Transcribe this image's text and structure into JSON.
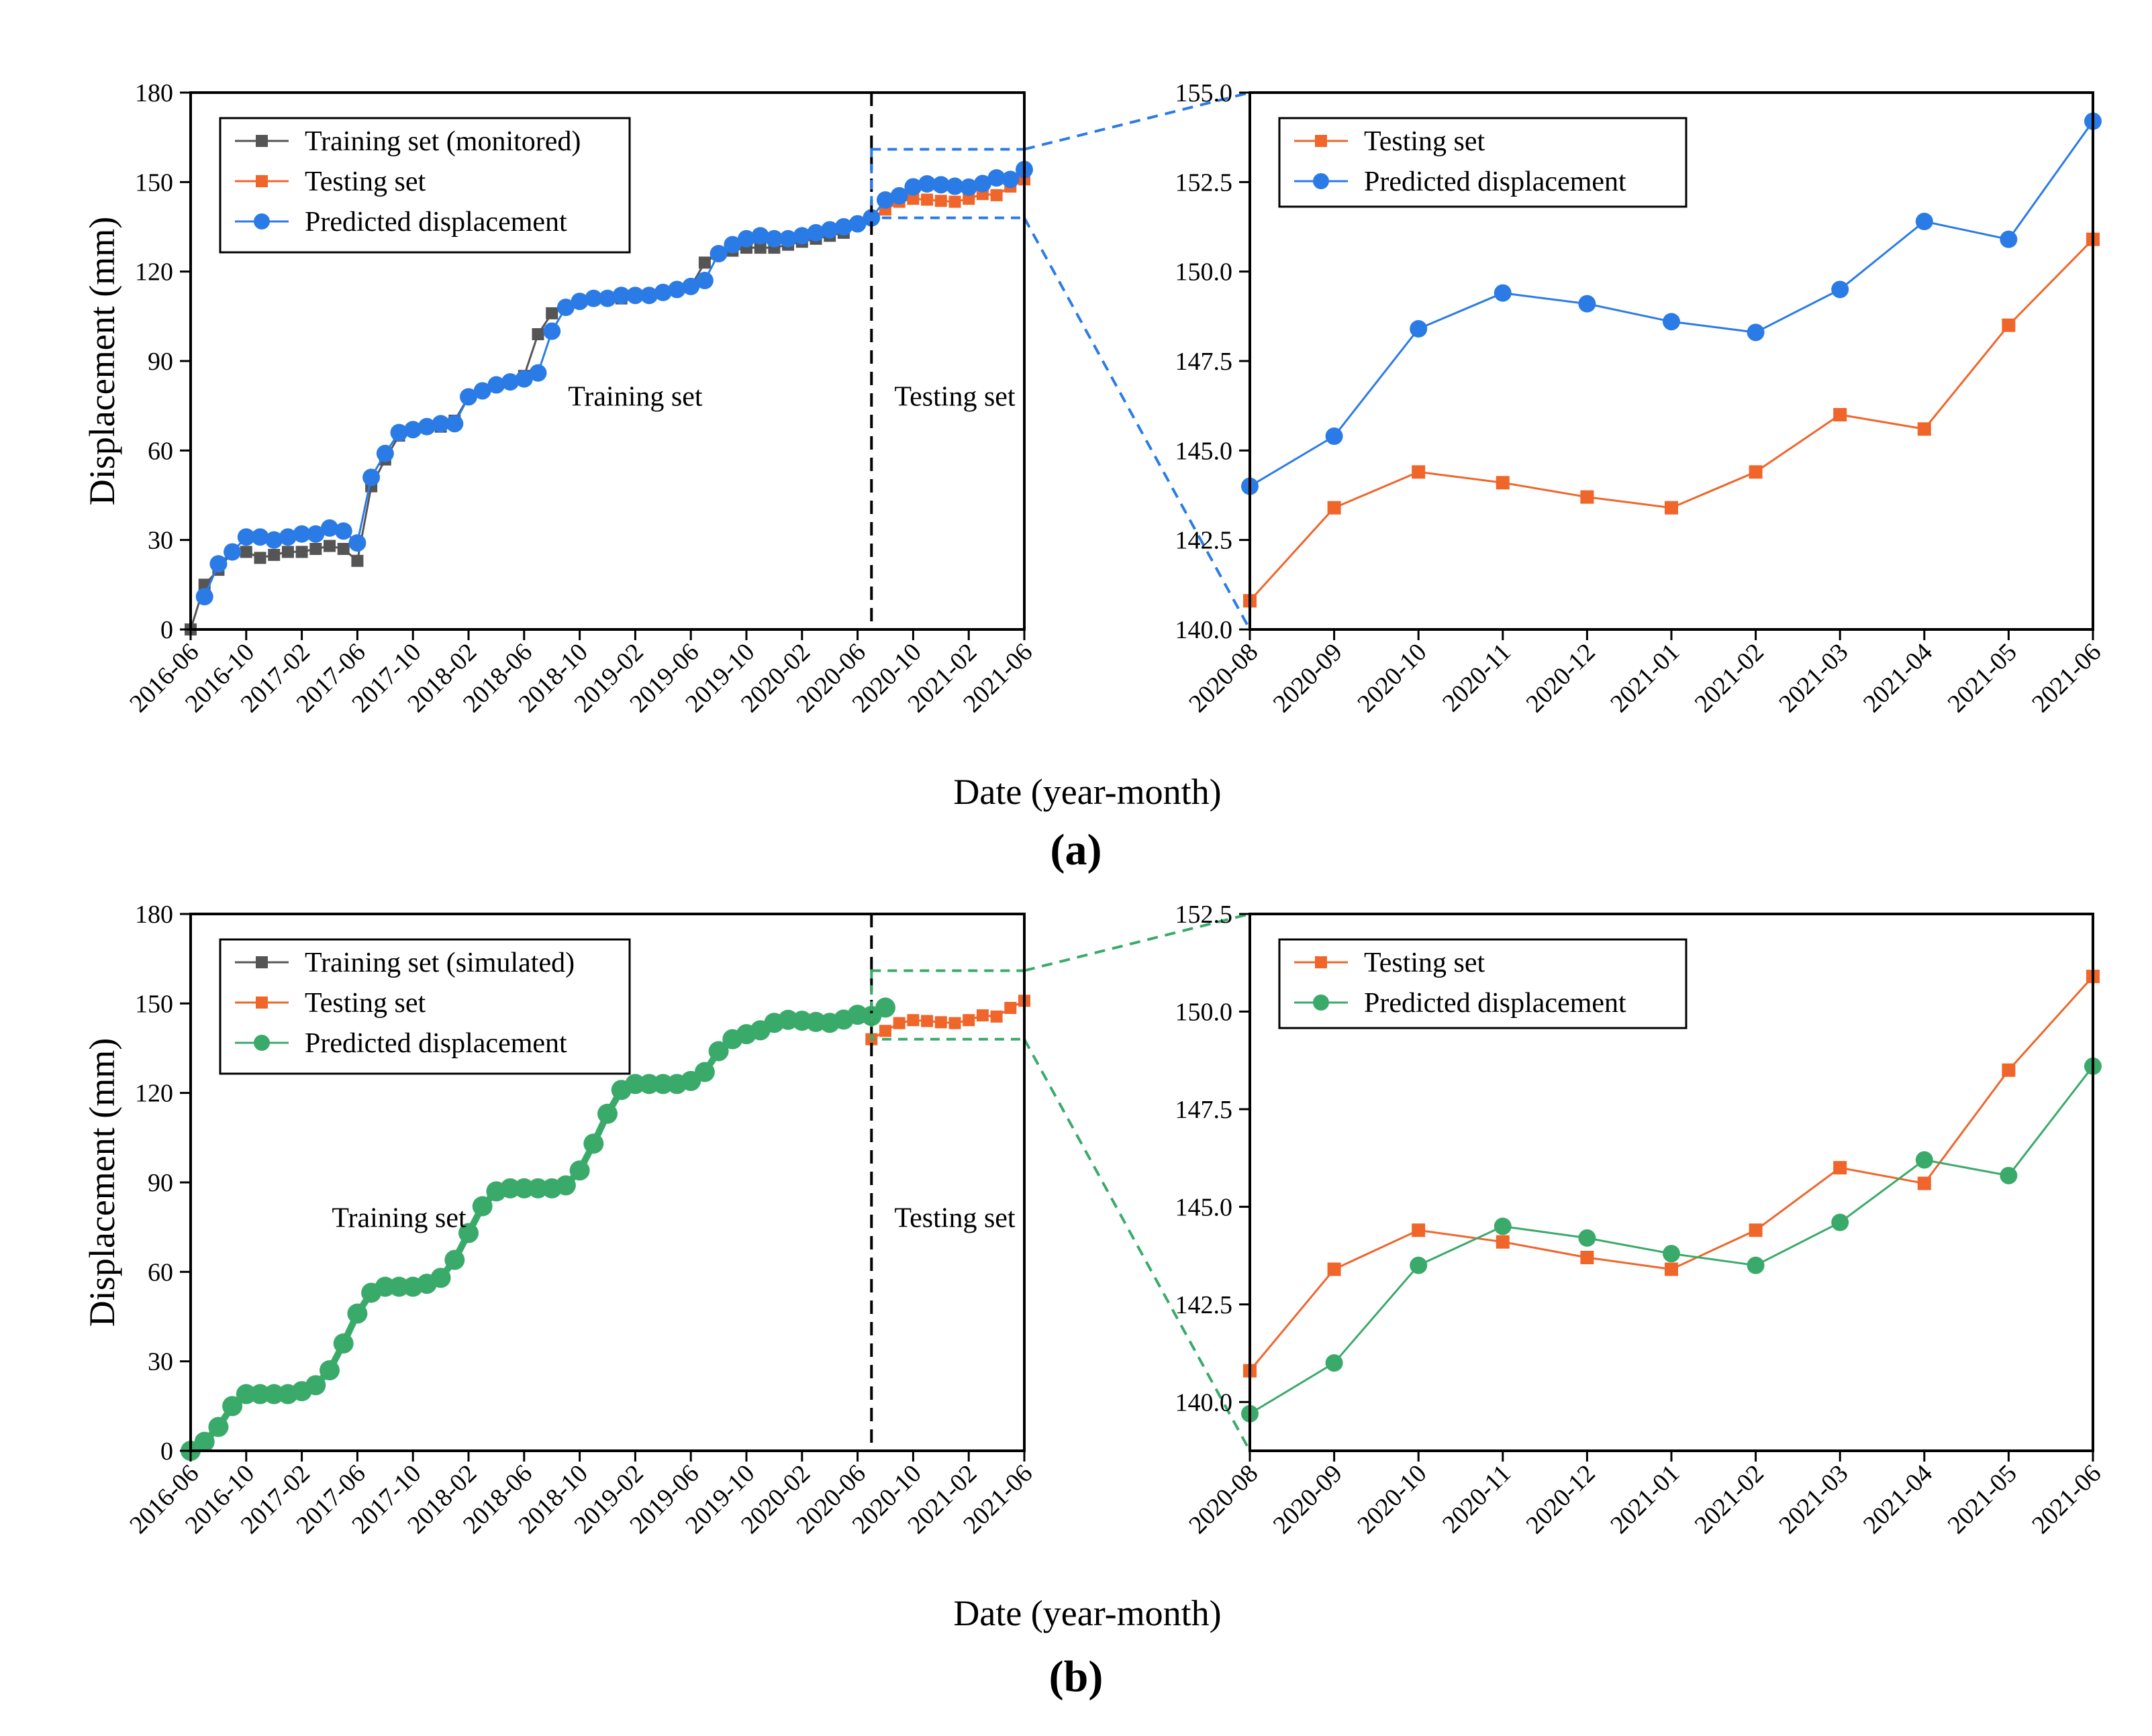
{
  "figure": {
    "panel_labels": [
      "(a)",
      "(b)"
    ],
    "colors": {
      "training": "#555555",
      "testing": "#f0652a",
      "predicted_a": "#2b7be6",
      "predicted_b": "#3aaa6a"
    }
  },
  "chart_data": [
    {
      "id": "a-main",
      "type": "line",
      "xlabel": "Date (year-month)",
      "ylabel": "Displacement (mm)",
      "ylim": [
        0,
        180
      ],
      "yticks": [
        0,
        30,
        60,
        90,
        120,
        150,
        180
      ],
      "xlim": [
        0,
        60
      ],
      "xticks": [
        {
          "i": 0,
          "label": "2016-06"
        },
        {
          "i": 4,
          "label": "2016-10"
        },
        {
          "i": 8,
          "label": "2017-02"
        },
        {
          "i": 12,
          "label": "2017-06"
        },
        {
          "i": 16,
          "label": "2017-10"
        },
        {
          "i": 20,
          "label": "2018-02"
        },
        {
          "i": 24,
          "label": "2018-06"
        },
        {
          "i": 28,
          "label": "2018-10"
        },
        {
          "i": 32,
          "label": "2019-02"
        },
        {
          "i": 36,
          "label": "2019-06"
        },
        {
          "i": 40,
          "label": "2019-10"
        },
        {
          "i": 44,
          "label": "2020-02"
        },
        {
          "i": 48,
          "label": "2020-06"
        },
        {
          "i": 52,
          "label": "2020-10"
        },
        {
          "i": 56,
          "label": "2021-02"
        },
        {
          "i": 60,
          "label": "2021-06"
        }
      ],
      "split_index": 49,
      "region_labels": {
        "training": "Training set",
        "testing": "Testing set"
      },
      "region_label_pos": {
        "training": [
          32,
          75
        ],
        "testing": [
          55,
          75
        ]
      },
      "zoom_box": {
        "x": [
          49,
          60
        ],
        "y": [
          138,
          161
        ]
      },
      "legend": [
        "Training set (monitored)",
        "Testing set",
        "Predicted displacement"
      ],
      "series": [
        {
          "name": "Training set (monitored)",
          "x_start": 0,
          "values": [
            0,
            15,
            20,
            26,
            26,
            24,
            25,
            26,
            26,
            27,
            28,
            27,
            23,
            48,
            57,
            65,
            67,
            68,
            68,
            70,
            78,
            80,
            82,
            83,
            85,
            99,
            106,
            108,
            110,
            111,
            111,
            111,
            112,
            112,
            113,
            114,
            115,
            123,
            126,
            127,
            128,
            128,
            128,
            129,
            130,
            131,
            132,
            133,
            136,
            138
          ]
        },
        {
          "name": "Testing set",
          "x_start": 49,
          "values": [
            138,
            140.8,
            143.4,
            144.4,
            144.1,
            143.7,
            143.4,
            144.4,
            146.0,
            145.6,
            148.5,
            150.9
          ]
        },
        {
          "name": "Predicted displacement",
          "x_start": 1,
          "values": [
            11,
            22,
            26,
            31,
            31,
            30,
            31,
            32,
            32,
            34,
            33,
            29,
            51,
            59,
            66,
            67,
            68,
            69,
            69,
            78,
            80,
            82,
            83,
            84,
            86,
            100,
            108,
            110,
            111,
            111,
            112,
            112,
            112,
            113,
            114,
            115,
            117,
            126,
            129,
            131,
            132,
            131,
            131,
            132,
            133,
            134,
            135,
            136,
            138,
            144.0,
            145.4,
            148.4,
            149.4,
            149.1,
            148.6,
            148.3,
            149.5,
            151.4,
            150.9,
            154.2
          ]
        }
      ]
    },
    {
      "id": "a-zoom",
      "type": "line",
      "xlabel": "Date (year-month)",
      "ylabel": "",
      "ylim": [
        140.0,
        155.0
      ],
      "yticks": [
        "140.0",
        "142.5",
        "145.0",
        "147.5",
        "150.0",
        "152.5",
        "155.0"
      ],
      "categories": [
        "2020-08",
        "2020-09",
        "2020-10",
        "2020-11",
        "2020-12",
        "2021-01",
        "2021-02",
        "2021-03",
        "2021-04",
        "2021-05",
        "2021-06"
      ],
      "legend": [
        "Testing set",
        "Predicted displacement"
      ],
      "series": [
        {
          "name": "Testing set",
          "values": [
            140.8,
            143.4,
            144.4,
            144.1,
            143.7,
            143.4,
            144.4,
            146.0,
            145.6,
            148.5,
            150.9
          ]
        },
        {
          "name": "Predicted displacement",
          "values": [
            144.0,
            145.4,
            148.4,
            149.4,
            149.1,
            148.6,
            148.3,
            149.5,
            151.4,
            150.9,
            154.2
          ]
        }
      ]
    },
    {
      "id": "b-main",
      "type": "line",
      "xlabel": "Date (year-month)",
      "ylabel": "Displacement (mm)",
      "ylim": [
        0,
        180
      ],
      "yticks": [
        0,
        30,
        60,
        90,
        120,
        150,
        180
      ],
      "xlim": [
        0,
        60
      ],
      "xticks": [
        {
          "i": 0,
          "label": "2016-06"
        },
        {
          "i": 4,
          "label": "2016-10"
        },
        {
          "i": 8,
          "label": "2017-02"
        },
        {
          "i": 12,
          "label": "2017-06"
        },
        {
          "i": 16,
          "label": "2017-10"
        },
        {
          "i": 20,
          "label": "2018-02"
        },
        {
          "i": 24,
          "label": "2018-06"
        },
        {
          "i": 28,
          "label": "2018-10"
        },
        {
          "i": 32,
          "label": "2019-02"
        },
        {
          "i": 36,
          "label": "2019-06"
        },
        {
          "i": 40,
          "label": "2019-10"
        },
        {
          "i": 44,
          "label": "2020-02"
        },
        {
          "i": 48,
          "label": "2020-06"
        },
        {
          "i": 52,
          "label": "2020-10"
        },
        {
          "i": 56,
          "label": "2021-02"
        },
        {
          "i": 60,
          "label": "2021-06"
        }
      ],
      "split_index": 49,
      "region_labels": {
        "training": "Training set",
        "testing": "Testing set"
      },
      "region_label_pos": {
        "training": [
          15,
          75
        ],
        "testing": [
          55,
          75
        ]
      },
      "zoom_box": {
        "x": [
          49,
          60
        ],
        "y": [
          138,
          161
        ]
      },
      "legend": [
        "Training set (simulated)",
        "Testing set",
        "Predicted displacement"
      ],
      "series": [
        {
          "name": "Training set (simulated)",
          "x_start": 0,
          "values": [
            0,
            3,
            8,
            15,
            19,
            19,
            19,
            19,
            20,
            22,
            27,
            36,
            46,
            53,
            55,
            55,
            55,
            56,
            58,
            64,
            73,
            82,
            87,
            88,
            88,
            88,
            88,
            89,
            94,
            103,
            113,
            121,
            123,
            123,
            123,
            123,
            124,
            127,
            134
          ]
        },
        {
          "name": "Testing set",
          "x_start": 49,
          "values": [
            138,
            140.8,
            143.4,
            144.4,
            144.1,
            143.7,
            143.4,
            144.4,
            146.0,
            145.6,
            148.5,
            150.9
          ]
        },
        {
          "name": "Predicted displacement",
          "x_start": 0,
          "values": [
            0,
            3,
            8,
            15,
            19,
            19,
            19,
            19,
            20,
            22,
            27,
            36,
            46,
            53,
            55,
            55,
            55,
            56,
            58,
            64,
            73,
            82,
            87,
            88,
            88,
            88,
            88,
            89,
            94,
            103,
            113,
            121,
            123,
            123,
            123,
            123,
            124,
            127,
            134,
            138,
            139.7,
            141.0,
            143.5,
            144.5,
            144.2,
            143.8,
            143.5,
            144.6,
            146.2,
            145.8,
            148.6
          ]
        }
      ]
    },
    {
      "id": "b-zoom",
      "type": "line",
      "xlabel": "Date (year-month)",
      "ylabel": "",
      "ylim": [
        138.75,
        152.5
      ],
      "yticks": [
        "140.0",
        "142.5",
        "145.0",
        "147.5",
        "150.0",
        "152.5"
      ],
      "categories": [
        "2020-08",
        "2020-09",
        "2020-10",
        "2020-11",
        "2020-12",
        "2021-01",
        "2021-02",
        "2021-03",
        "2021-04",
        "2021-05",
        "2021-06"
      ],
      "legend": [
        "Testing set",
        "Predicted displacement"
      ],
      "series": [
        {
          "name": "Testing set",
          "values": [
            140.8,
            143.4,
            144.4,
            144.1,
            143.7,
            143.4,
            144.4,
            146.0,
            145.6,
            148.5,
            150.9
          ]
        },
        {
          "name": "Predicted displacement",
          "values": [
            139.7,
            141.0,
            143.5,
            144.5,
            144.2,
            143.8,
            143.5,
            144.6,
            146.2,
            145.8,
            148.6
          ]
        }
      ]
    }
  ]
}
